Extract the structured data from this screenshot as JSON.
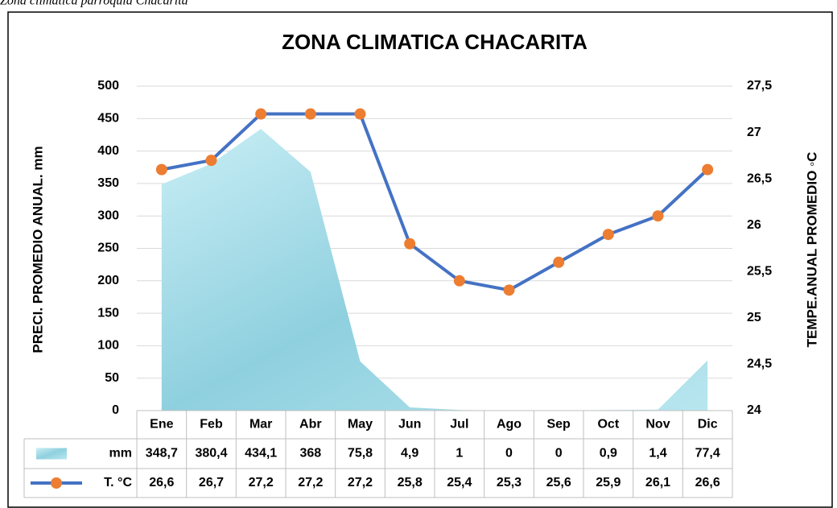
{
  "caption": "Zona climatica parroquia Chacarita",
  "chart_data": {
    "type": "area-line",
    "title": "ZONA CLIMATICA CHACARITA",
    "ylabel": "PRECI. PROMEDIO ANUAL. mm",
    "y2label": "TEMPE.ANUAL PROMEDIO ◦C",
    "categories": [
      "Ene",
      "Feb",
      "Mar",
      "Abr",
      "May",
      "Jun",
      "Jul",
      "Ago",
      "Sep",
      "Oct",
      "Nov",
      "Dic"
    ],
    "series": [
      {
        "name": "mm",
        "kind": "area",
        "color": "#a6dbe6",
        "values": [
          348.7,
          380.4,
          434.1,
          368,
          75.8,
          4.9,
          1,
          0,
          0,
          0.9,
          1.4,
          77.4
        ],
        "value_labels": [
          "348,7",
          "380,4",
          "434,1",
          "368",
          "75,8",
          "4,9",
          "1",
          "0",
          "0",
          "0,9",
          "1,4",
          "77,4"
        ]
      },
      {
        "name": "T. °C",
        "kind": "line",
        "axis": "y2",
        "color": "#4472c4",
        "marker_color": "#ed7d31",
        "values": [
          26.6,
          26.7,
          27.2,
          27.2,
          27.2,
          25.8,
          25.4,
          25.3,
          25.6,
          25.9,
          26.1,
          26.6
        ],
        "value_labels": [
          "26,6",
          "26,7",
          "27,2",
          "27,2",
          "27,2",
          "25,8",
          "25,4",
          "25,3",
          "25,6",
          "25,9",
          "26,1",
          "26,6"
        ]
      }
    ],
    "ylim": [
      0,
      500
    ],
    "yticks": [
      0,
      50,
      100,
      150,
      200,
      250,
      300,
      350,
      400,
      450,
      500
    ],
    "y2lim": [
      24,
      27.5
    ],
    "y2ticks": [
      24,
      {
        "value": 24.5,
        "label": "24,5"
      },
      25,
      {
        "value": 25.5,
        "label": "25,5"
      },
      26,
      {
        "value": 26.5,
        "label": "26,5"
      },
      27,
      {
        "value": 27.5,
        "label": "27,5"
      }
    ],
    "grid": true
  }
}
